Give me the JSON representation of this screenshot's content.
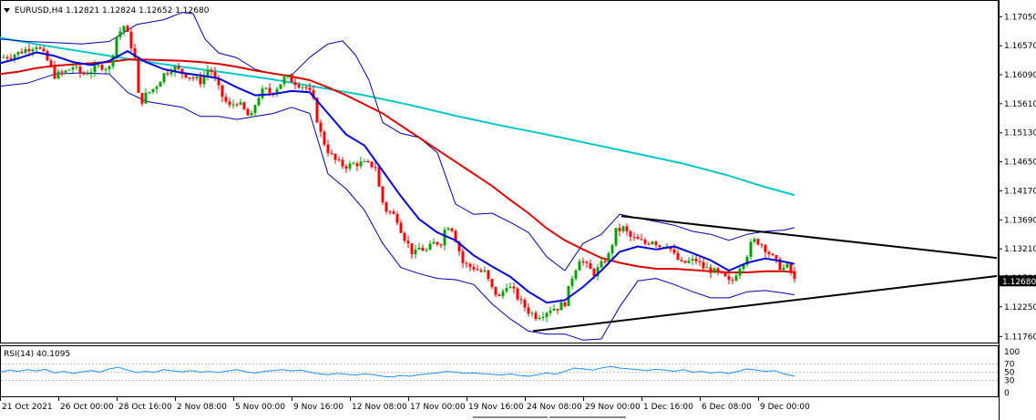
{
  "header": {
    "symbol_line": "EURUSD,H4  1.12821 1.12824 1.12652 1.12680",
    "rsi_label": "RSI(14) 40.1095"
  },
  "colors": {
    "bull": "#00a000",
    "bear": "#ff0000",
    "ma_fast": "#0000dd",
    "ma_mid": "#dd0000",
    "ma_slow": "#00c8c8",
    "bollinger": "#0000aa",
    "trendline": "#000000",
    "rsi": "#1e90ff",
    "current_price_bg": "#000000",
    "current_price_fg": "#ffffff"
  },
  "chart_data": {
    "type": "candlestick",
    "symbol": "EURUSD",
    "timeframe": "H4",
    "ohlc_header": {
      "open": 1.12821,
      "high": 1.12824,
      "low": 1.12652,
      "close": 1.1268
    },
    "current_price": "1.12680",
    "y_ticks": [
      "1.17050",
      "1.16570",
      "1.16090",
      "1.15610",
      "1.15130",
      "1.14650",
      "1.14170",
      "1.13690",
      "1.13210",
      "1.12730",
      "1.12250",
      "1.11760"
    ],
    "y_range": [
      1.1172,
      1.1713
    ],
    "x_ticks": [
      "21 Oct 2021",
      "26 Oct 00:00",
      "28 Oct 16:00",
      "2 Nov 08:00",
      "5 Nov 00:00",
      "9 Nov 16:00",
      "12 Nov 08:00",
      "17 Nov 00:00",
      "19 Nov 16:00",
      "24 Nov 08:00",
      "29 Nov 00:00",
      "1 Dec 16:00",
      "6 Dec 08:00",
      "9 Dec 00:00"
    ],
    "close_path": [
      [
        0,
        1.1637
      ],
      [
        10,
        1.164
      ],
      [
        20,
        1.1645
      ],
      [
        30,
        1.1652
      ],
      [
        40,
        1.1658
      ],
      [
        50,
        1.1638
      ],
      [
        60,
        1.1608
      ],
      [
        70,
        1.1612
      ],
      [
        80,
        1.1622
      ],
      [
        90,
        1.1609
      ],
      [
        100,
        1.1616
      ],
      [
        110,
        1.1624
      ],
      [
        120,
        1.162
      ],
      [
        128,
        1.1672
      ],
      [
        136,
        1.169
      ],
      [
        142,
        1.1668
      ],
      [
        148,
        1.1635
      ],
      [
        153,
        1.156
      ],
      [
        160,
        1.1575
      ],
      [
        170,
        1.1588
      ],
      [
        180,
        1.161
      ],
      [
        190,
        1.1622
      ],
      [
        200,
        1.1612
      ],
      [
        210,
        1.1605
      ],
      [
        220,
        1.1598
      ],
      [
        230,
        1.1622
      ],
      [
        238,
        1.1592
      ],
      [
        245,
        1.157
      ],
      [
        252,
        1.1556
      ],
      [
        260,
        1.1565
      ],
      [
        268,
        1.155
      ],
      [
        275,
        1.1535
      ],
      [
        282,
        1.157
      ],
      [
        290,
        1.1585
      ],
      [
        298,
        1.1578
      ],
      [
        306,
        1.1592
      ],
      [
        314,
        1.1606
      ],
      [
        322,
        1.1598
      ],
      [
        330,
        1.1592
      ],
      [
        338,
        1.1586
      ],
      [
        344,
        1.1565
      ],
      [
        350,
        1.152
      ],
      [
        358,
        1.1488
      ],
      [
        366,
        1.147
      ],
      [
        374,
        1.146
      ],
      [
        382,
        1.1458
      ],
      [
        390,
        1.1462
      ],
      [
        398,
        1.1462
      ],
      [
        406,
        1.146
      ],
      [
        412,
        1.1458
      ],
      [
        418,
        1.1405
      ],
      [
        424,
        1.1385
      ],
      [
        430,
        1.138
      ],
      [
        436,
        1.137
      ],
      [
        442,
        1.1345
      ],
      [
        448,
        1.1328
      ],
      [
        454,
        1.131
      ],
      [
        460,
        1.1322
      ],
      [
        468,
        1.1318
      ],
      [
        476,
        1.133
      ],
      [
        484,
        1.1332
      ],
      [
        490,
        1.1362
      ],
      [
        496,
        1.1355
      ],
      [
        502,
        1.1328
      ],
      [
        508,
        1.1298
      ],
      [
        514,
        1.1292
      ],
      [
        520,
        1.129
      ],
      [
        526,
        1.1284
      ],
      [
        532,
        1.1282
      ],
      [
        540,
        1.1255
      ],
      [
        548,
        1.124
      ],
      [
        556,
        1.1262
      ],
      [
        564,
        1.125
      ],
      [
        572,
        1.1232
      ],
      [
        580,
        1.1218
      ],
      [
        588,
        1.121
      ],
      [
        596,
        1.1214
      ],
      [
        604,
        1.1222
      ],
      [
        612,
        1.1224
      ],
      [
        620,
        1.1232
      ],
      [
        628,
        1.1275
      ],
      [
        636,
        1.1305
      ],
      [
        644,
        1.1292
      ],
      [
        652,
        1.128
      ],
      [
        660,
        1.1295
      ],
      [
        668,
        1.131
      ],
      [
        676,
        1.135
      ],
      [
        684,
        1.1355
      ],
      [
        692,
        1.134
      ],
      [
        700,
        1.1335
      ],
      [
        708,
        1.133
      ],
      [
        716,
        1.1336
      ],
      [
        724,
        1.1326
      ],
      [
        732,
        1.133
      ],
      [
        740,
        1.131
      ],
      [
        748,
        1.1296
      ],
      [
        756,
        1.13
      ],
      [
        764,
        1.1302
      ],
      [
        772,
        1.129
      ],
      [
        780,
        1.1286
      ],
      [
        788,
        1.128
      ],
      [
        796,
        1.1272
      ],
      [
        802,
        1.1262
      ],
      [
        810,
        1.1288
      ],
      [
        818,
        1.1305
      ],
      [
        826,
        1.1335
      ],
      [
        834,
        1.1332
      ],
      [
        842,
        1.1318
      ],
      [
        850,
        1.1302
      ],
      [
        858,
        1.1288
      ],
      [
        866,
        1.1292
      ],
      [
        872,
        1.1268
      ]
    ],
    "ma_fast": [
      [
        0,
        1.1628
      ],
      [
        20,
        1.1636
      ],
      [
        40,
        1.1646
      ],
      [
        60,
        1.164
      ],
      [
        80,
        1.163
      ],
      [
        100,
        1.1625
      ],
      [
        120,
        1.1632
      ],
      [
        140,
        1.1648
      ],
      [
        160,
        1.163
      ],
      [
        180,
        1.1618
      ],
      [
        200,
        1.1612
      ],
      [
        220,
        1.1608
      ],
      [
        240,
        1.1603
      ],
      [
        260,
        1.1588
      ],
      [
        280,
        1.1575
      ],
      [
        300,
        1.1577
      ],
      [
        320,
        1.1582
      ],
      [
        340,
        1.158
      ],
      [
        360,
        1.1545
      ],
      [
        380,
        1.151
      ],
      [
        400,
        1.1492
      ],
      [
        420,
        1.145
      ],
      [
        440,
        1.1408
      ],
      [
        460,
        1.137
      ],
      [
        480,
        1.1348
      ],
      [
        500,
        1.1335
      ],
      [
        520,
        1.131
      ],
      [
        540,
        1.1292
      ],
      [
        560,
        1.1275
      ],
      [
        580,
        1.125
      ],
      [
        600,
        1.1232
      ],
      [
        620,
        1.1236
      ],
      [
        640,
        1.1258
      ],
      [
        660,
        1.1285
      ],
      [
        680,
        1.1316
      ],
      [
        700,
        1.1325
      ],
      [
        720,
        1.132
      ],
      [
        740,
        1.1325
      ],
      [
        760,
        1.1314
      ],
      [
        780,
        1.1302
      ],
      [
        800,
        1.1285
      ],
      [
        820,
        1.1298
      ],
      [
        840,
        1.1305
      ],
      [
        860,
        1.13
      ],
      [
        872,
        1.1296
      ]
    ],
    "ma_mid": [
      [
        0,
        1.161
      ],
      [
        20,
        1.1614
      ],
      [
        40,
        1.162
      ],
      [
        60,
        1.1624
      ],
      [
        80,
        1.1626
      ],
      [
        100,
        1.1628
      ],
      [
        120,
        1.163
      ],
      [
        140,
        1.1634
      ],
      [
        160,
        1.1634
      ],
      [
        180,
        1.1633
      ],
      [
        200,
        1.1632
      ],
      [
        220,
        1.163
      ],
      [
        240,
        1.1627
      ],
      [
        260,
        1.1622
      ],
      [
        280,
        1.1616
      ],
      [
        300,
        1.1611
      ],
      [
        320,
        1.1606
      ],
      [
        340,
        1.16
      ],
      [
        360,
        1.1588
      ],
      [
        380,
        1.1575
      ],
      [
        400,
        1.156
      ],
      [
        420,
        1.1545
      ],
      [
        440,
        1.1525
      ],
      [
        460,
        1.1505
      ],
      [
        480,
        1.1485
      ],
      [
        500,
        1.1465
      ],
      [
        520,
        1.1445
      ],
      [
        540,
        1.1425
      ],
      [
        560,
        1.1402
      ],
      [
        580,
        1.138
      ],
      [
        600,
        1.1355
      ],
      [
        620,
        1.1335
      ],
      [
        640,
        1.132
      ],
      [
        660,
        1.1306
      ],
      [
        680,
        1.1298
      ],
      [
        700,
        1.1292
      ],
      [
        720,
        1.1288
      ],
      [
        740,
        1.1288
      ],
      [
        760,
        1.1286
      ],
      [
        780,
        1.1284
      ],
      [
        800,
        1.1282
      ],
      [
        820,
        1.1282
      ],
      [
        840,
        1.1284
      ],
      [
        860,
        1.1284
      ],
      [
        872,
        1.1282
      ]
    ],
    "ma_slow": [
      [
        0,
        1.167
      ],
      [
        50,
        1.1657
      ],
      [
        100,
        1.1645
      ],
      [
        150,
        1.1633
      ],
      [
        200,
        1.1622
      ],
      [
        250,
        1.1612
      ],
      [
        300,
        1.1601
      ],
      [
        350,
        1.1588
      ],
      [
        400,
        1.1575
      ],
      [
        450,
        1.1559
      ],
      [
        500,
        1.1541
      ],
      [
        550,
        1.1525
      ],
      [
        600,
        1.151
      ],
      [
        650,
        1.1494
      ],
      [
        700,
        1.1478
      ],
      [
        750,
        1.1462
      ],
      [
        800,
        1.1442
      ],
      [
        840,
        1.1423
      ],
      [
        872,
        1.141
      ]
    ],
    "bb_upper": [
      [
        0,
        1.1668
      ],
      [
        30,
        1.1664
      ],
      [
        60,
        1.1662
      ],
      [
        90,
        1.166
      ],
      [
        120,
        1.1664
      ],
      [
        150,
        1.1692
      ],
      [
        180,
        1.17
      ],
      [
        200,
        1.1712
      ],
      [
        212,
        1.171
      ],
      [
        225,
        1.1668
      ],
      [
        240,
        1.1645
      ],
      [
        260,
        1.1637
      ],
      [
        280,
        1.1618
      ],
      [
        300,
        1.161
      ],
      [
        320,
        1.1608
      ],
      [
        340,
        1.1638
      ],
      [
        360,
        1.166
      ],
      [
        376,
        1.1665
      ],
      [
        390,
        1.1642
      ],
      [
        405,
        1.16
      ],
      [
        420,
        1.153
      ],
      [
        440,
        1.1512
      ],
      [
        460,
        1.1505
      ],
      [
        480,
        1.148
      ],
      [
        500,
        1.1395
      ],
      [
        520,
        1.1378
      ],
      [
        540,
        1.138
      ],
      [
        560,
        1.1365
      ],
      [
        580,
        1.1348
      ],
      [
        600,
        1.1308
      ],
      [
        620,
        1.1285
      ],
      [
        640,
        1.133
      ],
      [
        660,
        1.1345
      ],
      [
        680,
        1.1378
      ],
      [
        700,
        1.1372
      ],
      [
        720,
        1.1366
      ],
      [
        740,
        1.136
      ],
      [
        760,
        1.135
      ],
      [
        780,
        1.1345
      ],
      [
        800,
        1.1335
      ],
      [
        820,
        1.1345
      ],
      [
        840,
        1.135
      ],
      [
        860,
        1.1352
      ],
      [
        872,
        1.1356
      ]
    ],
    "bb_lower": [
      [
        0,
        1.159
      ],
      [
        30,
        1.1595
      ],
      [
        60,
        1.161
      ],
      [
        90,
        1.1612
      ],
      [
        120,
        1.161
      ],
      [
        140,
        1.158
      ],
      [
        160,
        1.1565
      ],
      [
        180,
        1.156
      ],
      [
        200,
        1.1555
      ],
      [
        220,
        1.154
      ],
      [
        240,
        1.154
      ],
      [
        260,
        1.1535
      ],
      [
        280,
        1.154
      ],
      [
        300,
        1.1545
      ],
      [
        320,
        1.1555
      ],
      [
        340,
        1.1545
      ],
      [
        360,
        1.1445
      ],
      [
        380,
        1.142
      ],
      [
        400,
        1.1385
      ],
      [
        420,
        1.133
      ],
      [
        440,
        1.129
      ],
      [
        460,
        1.128
      ],
      [
        480,
        1.1272
      ],
      [
        500,
        1.127
      ],
      [
        520,
        1.1262
      ],
      [
        540,
        1.123
      ],
      [
        560,
        1.1205
      ],
      [
        580,
        1.1185
      ],
      [
        600,
        1.118
      ],
      [
        620,
        1.118
      ],
      [
        640,
        1.117
      ],
      [
        660,
        1.1172
      ],
      [
        680,
        1.1225
      ],
      [
        700,
        1.1268
      ],
      [
        720,
        1.1272
      ],
      [
        740,
        1.1262
      ],
      [
        760,
        1.125
      ],
      [
        780,
        1.124
      ],
      [
        800,
        1.124
      ],
      [
        820,
        1.125
      ],
      [
        840,
        1.1252
      ],
      [
        860,
        1.1248
      ],
      [
        872,
        1.1245
      ]
    ],
    "triangle_upper": [
      [
        682,
        1.1375
      ],
      [
        1094,
        1.1306
      ]
    ],
    "triangle_lower": [
      [
        585,
        1.1185
      ],
      [
        1094,
        1.1276
      ]
    ],
    "rsi": {
      "label": "RSI(14) 40.1095",
      "levels": [
        "100",
        "70",
        "50",
        "30",
        "0"
      ],
      "range": [
        0,
        100
      ],
      "values": [
        [
          0,
          50
        ],
        [
          10,
          55
        ],
        [
          20,
          52
        ],
        [
          30,
          56
        ],
        [
          40,
          53
        ],
        [
          50,
          57
        ],
        [
          60,
          48
        ],
        [
          70,
          52
        ],
        [
          80,
          47
        ],
        [
          90,
          51
        ],
        [
          100,
          54
        ],
        [
          110,
          50
        ],
        [
          120,
          58
        ],
        [
          130,
          62
        ],
        [
          140,
          55
        ],
        [
          150,
          49
        ],
        [
          160,
          52
        ],
        [
          170,
          50
        ],
        [
          180,
          56
        ],
        [
          190,
          53
        ],
        [
          200,
          51
        ],
        [
          210,
          54
        ],
        [
          220,
          50
        ],
        [
          230,
          52
        ],
        [
          240,
          49
        ],
        [
          250,
          53
        ],
        [
          260,
          56
        ],
        [
          270,
          51
        ],
        [
          280,
          48
        ],
        [
          290,
          52
        ],
        [
          300,
          54
        ],
        [
          310,
          56
        ],
        [
          320,
          53
        ],
        [
          330,
          55
        ],
        [
          340,
          50
        ],
        [
          350,
          46
        ],
        [
          360,
          44
        ],
        [
          370,
          47
        ],
        [
          380,
          45
        ],
        [
          390,
          43
        ],
        [
          400,
          46
        ],
        [
          410,
          44
        ],
        [
          420,
          40
        ],
        [
          430,
          38
        ],
        [
          440,
          42
        ],
        [
          450,
          40
        ],
        [
          460,
          44
        ],
        [
          470,
          46
        ],
        [
          480,
          48
        ],
        [
          490,
          52
        ],
        [
          500,
          50
        ],
        [
          510,
          47
        ],
        [
          520,
          48
        ],
        [
          530,
          46
        ],
        [
          540,
          45
        ],
        [
          550,
          43
        ],
        [
          560,
          46
        ],
        [
          570,
          42
        ],
        [
          580,
          40
        ],
        [
          590,
          44
        ],
        [
          600,
          48
        ],
        [
          610,
          45
        ],
        [
          620,
          52
        ],
        [
          630,
          60
        ],
        [
          640,
          58
        ],
        [
          650,
          55
        ],
        [
          660,
          60
        ],
        [
          670,
          64
        ],
        [
          680,
          60
        ],
        [
          690,
          58
        ],
        [
          700,
          56
        ],
        [
          710,
          54
        ],
        [
          720,
          57
        ],
        [
          730,
          55
        ],
        [
          740,
          52
        ],
        [
          750,
          56
        ],
        [
          760,
          50
        ],
        [
          770,
          52
        ],
        [
          780,
          48
        ],
        [
          790,
          50
        ],
        [
          800,
          47
        ],
        [
          810,
          52
        ],
        [
          820,
          58
        ],
        [
          830,
          55
        ],
        [
          840,
          52
        ],
        [
          850,
          54
        ],
        [
          860,
          46
        ],
        [
          872,
          40
        ]
      ]
    }
  }
}
